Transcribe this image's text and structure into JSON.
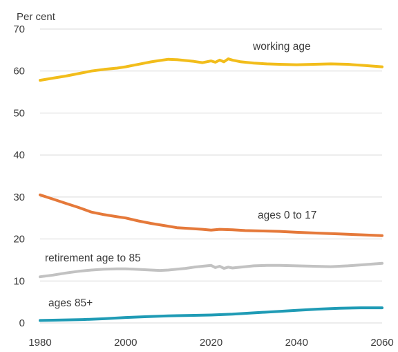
{
  "chart_data": {
    "type": "line",
    "unit_label": "Per cent",
    "xlim": [
      1980,
      2060
    ],
    "ylim": [
      0,
      70
    ],
    "x_ticks": [
      1980,
      2000,
      2020,
      2040,
      2060
    ],
    "y_ticks": [
      0,
      10,
      20,
      30,
      40,
      50,
      60,
      70
    ],
    "grid": "horizontal",
    "legend": "none",
    "series": [
      {
        "name": "working age",
        "color": "#f2bd1b",
        "x": [
          1980,
          1983,
          1986,
          1989,
          1992,
          1995,
          1998,
          2000,
          2002,
          2004,
          2006,
          2008,
          2010,
          2012,
          2014,
          2016,
          2018,
          2020,
          2021,
          2022,
          2023,
          2024,
          2025,
          2027,
          2030,
          2033,
          2036,
          2040,
          2044,
          2048,
          2052,
          2056,
          2060
        ],
        "values": [
          57.8,
          58.3,
          58.8,
          59.4,
          60.0,
          60.4,
          60.7,
          61.0,
          61.4,
          61.8,
          62.2,
          62.5,
          62.8,
          62.7,
          62.5,
          62.3,
          62.0,
          62.4,
          62.1,
          62.6,
          62.2,
          62.9,
          62.6,
          62.2,
          61.9,
          61.7,
          61.6,
          61.5,
          61.6,
          61.7,
          61.6,
          61.3,
          61.0
        ]
      },
      {
        "name": "ages 0 to 17",
        "color": "#e5793a",
        "x": [
          1980,
          1983,
          1986,
          1989,
          1992,
          1995,
          1998,
          2000,
          2003,
          2006,
          2009,
          2012,
          2015,
          2018,
          2020,
          2022,
          2025,
          2028,
          2032,
          2036,
          2040,
          2045,
          2050,
          2055,
          2060
        ],
        "values": [
          30.5,
          29.5,
          28.5,
          27.5,
          26.4,
          25.8,
          25.3,
          25.0,
          24.3,
          23.7,
          23.2,
          22.7,
          22.5,
          22.3,
          22.1,
          22.3,
          22.2,
          22.0,
          21.9,
          21.8,
          21.6,
          21.4,
          21.2,
          21.0,
          20.8
        ]
      },
      {
        "name": "retirement age to 85",
        "color": "#c2c2c2",
        "x": [
          1980,
          1983,
          1986,
          1989,
          1992,
          1995,
          1998,
          2000,
          2002,
          2004,
          2006,
          2008,
          2010,
          2012,
          2014,
          2016,
          2018,
          2020,
          2021,
          2022,
          2023,
          2024,
          2025,
          2027,
          2030,
          2033,
          2036,
          2040,
          2044,
          2048,
          2052,
          2056,
          2060
        ],
        "values": [
          11.0,
          11.4,
          11.9,
          12.3,
          12.6,
          12.8,
          12.9,
          12.9,
          12.8,
          12.7,
          12.6,
          12.5,
          12.6,
          12.8,
          13.0,
          13.3,
          13.5,
          13.7,
          13.2,
          13.5,
          13.0,
          13.3,
          13.1,
          13.3,
          13.6,
          13.7,
          13.7,
          13.6,
          13.5,
          13.4,
          13.6,
          13.9,
          14.2
        ]
      },
      {
        "name": "ages 85+",
        "color": "#1f9bb5",
        "x": [
          1980,
          1985,
          1990,
          1995,
          2000,
          2005,
          2010,
          2015,
          2020,
          2025,
          2030,
          2035,
          2040,
          2045,
          2050,
          2055,
          2060
        ],
        "values": [
          0.6,
          0.7,
          0.8,
          1.0,
          1.3,
          1.5,
          1.7,
          1.8,
          1.9,
          2.1,
          2.4,
          2.7,
          3.0,
          3.3,
          3.5,
          3.6,
          3.6
        ]
      }
    ]
  }
}
